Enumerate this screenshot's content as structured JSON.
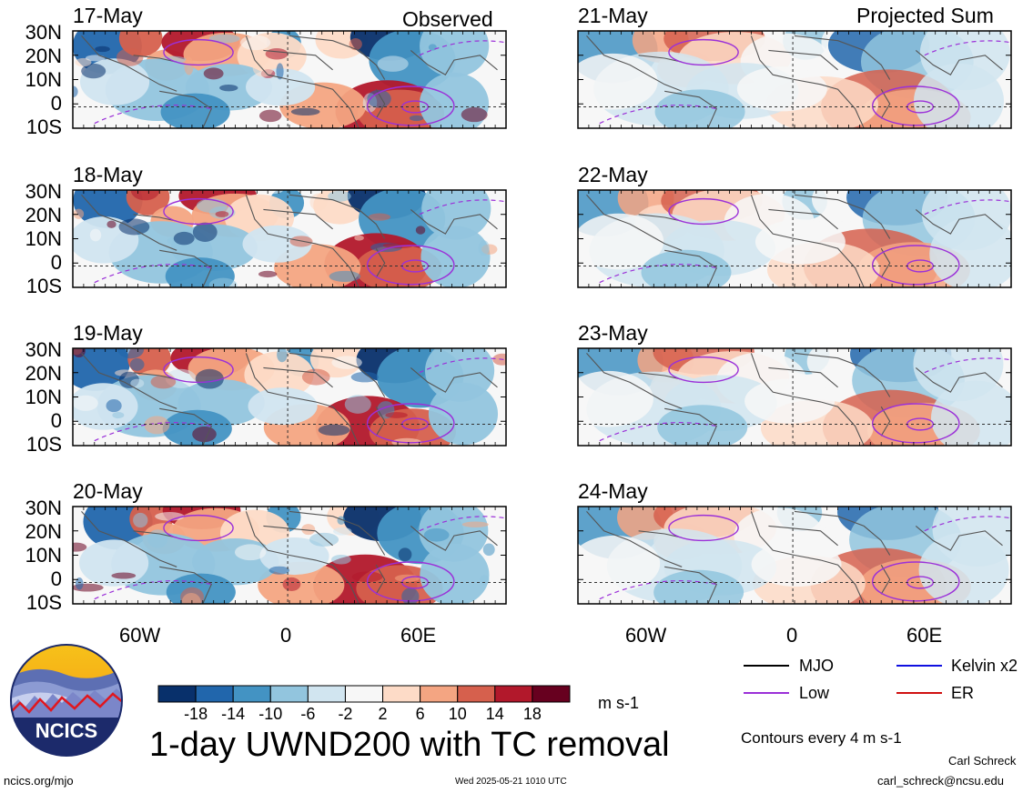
{
  "panels": {
    "left": {
      "kind": "Observed",
      "dates": [
        "17-May",
        "18-May",
        "19-May",
        "20-May"
      ]
    },
    "right": {
      "kind": "Projected Sum",
      "dates": [
        "21-May",
        "22-May",
        "23-May",
        "24-May"
      ]
    }
  },
  "lat_labels": [
    "30N",
    "20N",
    "10N",
    "0",
    "10S"
  ],
  "lon_labels": [
    "60W",
    "0",
    "60E"
  ],
  "legend": {
    "items": [
      {
        "label": "MJO",
        "color": "#000000"
      },
      {
        "label": "Kelvin x2",
        "color": "#1010e0"
      },
      {
        "label": "Low",
        "color": "#9b30d8"
      },
      {
        "label": "ER",
        "color": "#d01010"
      }
    ],
    "contour_note": "Contours every 4 m s-1"
  },
  "colorbar": {
    "ticks": [
      "-18",
      "-14",
      "-10",
      "-6",
      "-2",
      "2",
      "6",
      "10",
      "14",
      "18"
    ],
    "colors": [
      "#08306b",
      "#2166ac",
      "#4393c3",
      "#92c5de",
      "#d1e5f0",
      "#f7f7f7",
      "#fddbc7",
      "#f4a582",
      "#d6604d",
      "#b2182b",
      "#67001f"
    ],
    "units": "m s-1"
  },
  "logo_text": "NCICS",
  "title": "1-day UWND200 with TC removal",
  "footer": {
    "url": "ncics.org/mjo",
    "timestamp": "Wed 2025-05-21 1010 UTC",
    "author": "Carl Schreck",
    "email": "carl_schreck@ncsu.edu"
  }
}
